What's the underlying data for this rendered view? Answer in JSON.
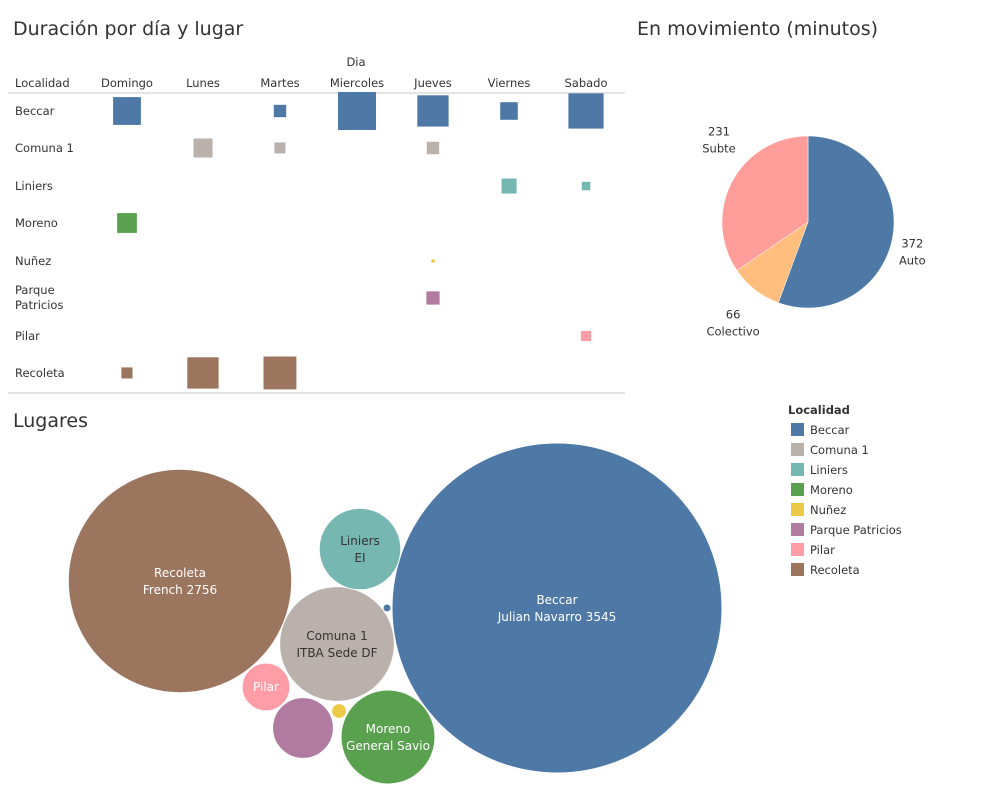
{
  "colors": {
    "Beccar": "#4e79a7",
    "Comuna 1": "#bab0ac",
    "Liniers": "#76b7b2",
    "Moreno": "#59a14f",
    "Nuñez": "#edc948",
    "Parque Patricios": "#b07aa1",
    "Pilar": "#ff9da7",
    "Recoleta": "#9c755f"
  },
  "chart_data": [
    {
      "type": "heatmap",
      "title": "Duración por día y lugar",
      "row_header": "Localidad",
      "col_header": "Dia",
      "columns": [
        "Domingo",
        "Lunes",
        "Martes",
        "Miercoles",
        "Jueves",
        "Viernes",
        "Sabado"
      ],
      "rows": [
        "Beccar",
        "Comuna 1",
        "Liniers",
        "Moreno",
        "Nuñez",
        "Parque Patricios",
        "Pilar",
        "Recoleta"
      ],
      "row_labels": [
        [
          "Beccar"
        ],
        [
          "Comuna 1"
        ],
        [
          "Liniers"
        ],
        [
          "Moreno"
        ],
        [
          "Nuñez"
        ],
        [
          "Parque",
          "Patricios"
        ],
        [
          "Pilar"
        ],
        [
          "Recoleta"
        ]
      ],
      "cells": [
        {
          "row": "Beccar",
          "col": "Domingo",
          "value": 0.75
        },
        {
          "row": "Beccar",
          "col": "Martes",
          "value": 0.15
        },
        {
          "row": "Beccar",
          "col": "Miercoles",
          "value": 1.4
        },
        {
          "row": "Beccar",
          "col": "Jueves",
          "value": 0.95
        },
        {
          "row": "Beccar",
          "col": "Viernes",
          "value": 0.3
        },
        {
          "row": "Beccar",
          "col": "Sabado",
          "value": 1.2
        },
        {
          "row": "Comuna 1",
          "col": "Lunes",
          "value": 0.35
        },
        {
          "row": "Comuna 1",
          "col": "Martes",
          "value": 0.12
        },
        {
          "row": "Comuna 1",
          "col": "Jueves",
          "value": 0.15
        },
        {
          "row": "Liniers",
          "col": "Viernes",
          "value": 0.22
        },
        {
          "row": "Liniers",
          "col": "Sabado",
          "value": 0.07
        },
        {
          "row": "Moreno",
          "col": "Domingo",
          "value": 0.38
        },
        {
          "row": "Nuñez",
          "col": "Jueves",
          "value": 0.01
        },
        {
          "row": "Parque Patricios",
          "col": "Jueves",
          "value": 0.17
        },
        {
          "row": "Pilar",
          "col": "Sabado",
          "value": 0.1
        },
        {
          "row": "Recoleta",
          "col": "Domingo",
          "value": 0.12
        },
        {
          "row": "Recoleta",
          "col": "Lunes",
          "value": 0.95
        },
        {
          "row": "Recoleta",
          "col": "Martes",
          "value": 1.05
        }
      ]
    },
    {
      "type": "pie",
      "title": "En movimiento (minutos)",
      "slices": [
        {
          "label": "Auto",
          "value": 372,
          "color": "#4e79a7"
        },
        {
          "label": "Colectivo",
          "value": 66,
          "color": "#ffbe7d"
        },
        {
          "label": "Subte",
          "value": 231,
          "color": "#ff9d9a"
        }
      ]
    },
    {
      "type": "bubble",
      "title": "Lugares",
      "bubbles": [
        {
          "localidad": "Beccar",
          "lugar": "Julian Navarro 3545",
          "value": 100
        },
        {
          "localidad": "Recoleta",
          "lugar": "French 2756",
          "value": 45.8
        },
        {
          "localidad": "Comuna 1",
          "lugar": "ITBA Sede DF",
          "value": 12.1
        },
        {
          "localidad": "Liniers",
          "lugar": "EI",
          "value": 6.1
        },
        {
          "localidad": "Moreno",
          "lugar": "General Savio",
          "value": 8.1
        },
        {
          "localidad": "Parque Patricios",
          "lugar": "",
          "value": 3.4
        },
        {
          "localidad": "Pilar",
          "lugar": "",
          "value": 2.1
        },
        {
          "localidad": "Nuñez",
          "lugar": "",
          "value": 0.2
        },
        {
          "localidad": "Beccar",
          "lugar": "",
          "value": 0.05
        }
      ]
    }
  ],
  "legend": {
    "title": "Localidad",
    "items": [
      "Beccar",
      "Comuna 1",
      "Liniers",
      "Moreno",
      "Nuñez",
      "Parque Patricios",
      "Pilar",
      "Recoleta"
    ]
  }
}
